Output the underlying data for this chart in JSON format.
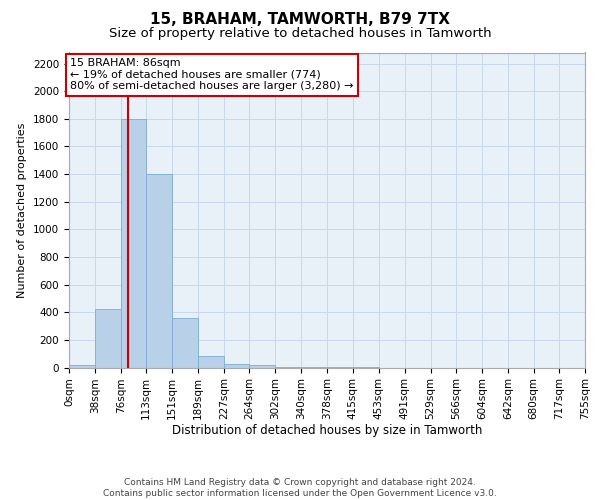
{
  "title1": "15, BRAHAM, TAMWORTH, B79 7TX",
  "title2": "Size of property relative to detached houses in Tamworth",
  "xlabel": "Distribution of detached houses by size in Tamworth",
  "ylabel": "Number of detached properties",
  "bar_color": "#b8d0e8",
  "bar_edge_color": "#7aaed6",
  "bar_values": [
    20,
    420,
    1800,
    1400,
    360,
    80,
    25,
    15,
    5,
    2,
    1,
    1,
    0,
    0,
    0,
    0,
    0,
    0,
    0,
    0
  ],
  "bin_edges": [
    0,
    38,
    76,
    113,
    151,
    189,
    227,
    264,
    302,
    340,
    378,
    415,
    453,
    491,
    529,
    566,
    604,
    642,
    680,
    717,
    755
  ],
  "tick_labels": [
    "0sqm",
    "38sqm",
    "76sqm",
    "113sqm",
    "151sqm",
    "189sqm",
    "227sqm",
    "264sqm",
    "302sqm",
    "340sqm",
    "378sqm",
    "415sqm",
    "453sqm",
    "491sqm",
    "529sqm",
    "566sqm",
    "604sqm",
    "642sqm",
    "680sqm",
    "717sqm",
    "755sqm"
  ],
  "ylim": [
    0,
    2280
  ],
  "yticks": [
    0,
    200,
    400,
    600,
    800,
    1000,
    1200,
    1400,
    1600,
    1800,
    2000,
    2200
  ],
  "vline_x": 86,
  "vline_color": "#cc0000",
  "annotation_text": "15 BRAHAM: 86sqm\n← 19% of detached houses are smaller (774)\n80% of semi-detached houses are larger (3,280) →",
  "annotation_box_color": "#ffffff",
  "annotation_border_color": "#cc0000",
  "grid_color": "#c8d8ea",
  "background_color": "#e8f0f8",
  "fig_background": "#ffffff",
  "footer_text": "Contains HM Land Registry data © Crown copyright and database right 2024.\nContains public sector information licensed under the Open Government Licence v3.0.",
  "title1_fontsize": 11,
  "title2_fontsize": 9.5,
  "xlabel_fontsize": 8.5,
  "ylabel_fontsize": 8,
  "tick_fontsize": 7.5,
  "annotation_fontsize": 8,
  "footer_fontsize": 6.5
}
